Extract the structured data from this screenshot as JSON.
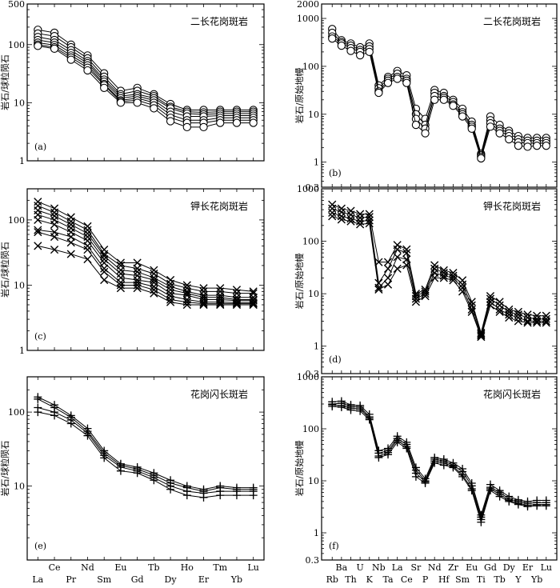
{
  "chart_data": [
    {
      "id": "a",
      "type": "line",
      "panel_label": "(a)",
      "title": "二长花岗斑岩",
      "ylabel": "岩石/球粒陨石",
      "yscale": "log",
      "ylim": [
        1,
        500
      ],
      "yticks": [
        1,
        10,
        100,
        500
      ],
      "ytick_labels": [
        "1",
        "10",
        "100",
        "500"
      ],
      "categories": [
        "La",
        "Ce",
        "Pr",
        "Nd",
        "Sm",
        "Eu",
        "Gd",
        "Tb",
        "Dy",
        "Ho",
        "Er",
        "Tm",
        "Yb",
        "Lu"
      ],
      "marker": "circle",
      "series": [
        {
          "values": [
            180,
            160,
            100,
            65,
            32,
            16,
            18,
            14,
            9.5,
            7.5,
            7.5,
            7.5,
            7.5,
            7.5
          ]
        },
        {
          "values": [
            155,
            140,
            90,
            58,
            28,
            14,
            16,
            13,
            8.5,
            7,
            6.8,
            7,
            7,
            7
          ]
        },
        {
          "values": [
            135,
            120,
            80,
            52,
            25,
            13,
            14,
            12,
            8,
            6.5,
            6.3,
            6.5,
            6.5,
            6.5
          ]
        },
        {
          "values": [
            120,
            108,
            72,
            48,
            23,
            12,
            13,
            11,
            7,
            5.8,
            5.8,
            6,
            6,
            6
          ]
        },
        {
          "values": [
            108,
            98,
            65,
            44,
            21,
            11,
            12,
            10,
            6.2,
            5,
            5,
            5.5,
            5.5,
            5.5
          ]
        },
        {
          "values": [
            100,
            90,
            60,
            40,
            20,
            10.5,
            11,
            9,
            5.5,
            4.5,
            4.5,
            5,
            5,
            5
          ]
        },
        {
          "values": [
            95,
            85,
            55,
            36,
            18,
            10,
            10,
            8,
            4.8,
            3.8,
            3.8,
            4.5,
            4.5,
            4.5
          ]
        }
      ]
    },
    {
      "id": "b",
      "type": "line",
      "panel_label": "(b)",
      "title": "二长花岗斑岩",
      "ylabel": "岩石/原始地幔",
      "yscale": "log",
      "ylim": [
        0.3,
        2000
      ],
      "yticks": [
        0.3,
        1,
        10,
        100,
        1000,
        2000
      ],
      "ytick_labels": [
        "0.3",
        "1",
        "10",
        "100",
        "1000",
        "2000"
      ],
      "categories": [
        "Rb",
        "Ba",
        "Th",
        "U",
        "K",
        "Nb",
        "Ta",
        "La",
        "Ce",
        "Sr",
        "P",
        "Nd",
        "Hf",
        "Zr",
        "Sm",
        "Eu",
        "Ti",
        "Gd",
        "Tb",
        "Dy",
        "Y",
        "Er",
        "Yb",
        "Lu"
      ],
      "marker": "circle",
      "series": [
        {
          "values": [
            600,
            350,
            300,
            250,
            300,
            40,
            60,
            80,
            65,
            13,
            8,
            32,
            28,
            20,
            13,
            7,
            1.5,
            9,
            6,
            4.5,
            3.5,
            3.2,
            3.2,
            3.2
          ]
        },
        {
          "values": [
            500,
            320,
            270,
            220,
            260,
            35,
            55,
            70,
            55,
            10,
            6,
            28,
            24,
            18,
            11,
            6,
            1.4,
            7.5,
            5,
            4,
            3,
            2.8,
            2.8,
            2.8
          ]
        },
        {
          "values": [
            420,
            300,
            240,
            200,
            230,
            30,
            50,
            60,
            50,
            8,
            5,
            24,
            22,
            16,
            10,
            5.5,
            1.3,
            6.5,
            4.5,
            3.5,
            2.6,
            2.5,
            2.5,
            2.5
          ]
        },
        {
          "values": [
            380,
            270,
            210,
            170,
            200,
            28,
            45,
            55,
            45,
            6,
            4,
            20,
            20,
            15,
            9,
            5,
            1.2,
            5.5,
            4,
            3,
            2.2,
            2.1,
            2.2,
            2.2
          ]
        }
      ]
    },
    {
      "id": "c",
      "type": "line",
      "panel_label": "(c)",
      "title": "钾长花岗斑岩",
      "ylabel": "岩石/球粒陨石",
      "yscale": "log",
      "ylim": [
        1,
        300
      ],
      "yticks": [
        1,
        10,
        100
      ],
      "ytick_labels": [
        "1",
        "10",
        "100"
      ],
      "categories": [
        "La",
        "Ce",
        "Pr",
        "Nd",
        "Sm",
        "Eu",
        "Gd",
        "Tb",
        "Dy",
        "Ho",
        "Er",
        "Tm",
        "Yb",
        "Lu"
      ],
      "marker": "x",
      "series": [
        {
          "values": [
            190,
            150,
            110,
            80,
            35,
            22,
            22,
            17,
            12,
            10,
            9,
            9,
            8.5,
            8
          ]
        },
        {
          "values": [
            165,
            130,
            95,
            70,
            30,
            20,
            18,
            15,
            10.5,
            9,
            8,
            8,
            7.5,
            7.5
          ]
        },
        {
          "values": [
            140,
            115,
            85,
            62,
            28,
            17,
            16,
            13,
            9.5,
            8,
            7,
            7,
            6.5,
            6.5
          ]
        },
        {
          "values": [
            120,
            100,
            75,
            55,
            25,
            15,
            14,
            12,
            8.5,
            7.5,
            6.5,
            6.5,
            6,
            6
          ]
        },
        {
          "values": [
            100,
            85,
            65,
            48,
            22,
            13,
            12,
            11,
            7.5,
            7,
            6,
            6,
            5.8,
            5.8
          ]
        },
        {
          "values": [
            70,
            65,
            55,
            40,
            18,
            11,
            11,
            9.5,
            6.8,
            6,
            5.5,
            5.5,
            5.4,
            5.4
          ]
        },
        {
          "values": [
            65,
            55,
            45,
            35,
            16,
            10,
            10,
            8.5,
            6,
            5.5,
            5.2,
            5.2,
            5.2,
            5.2
          ]
        },
        {
          "values": [
            40,
            35,
            30,
            25,
            12,
            9,
            9,
            7.5,
            5.5,
            5,
            5,
            5,
            5,
            5
          ]
        }
      ]
    },
    {
      "id": "d",
      "type": "line",
      "panel_label": "(d)",
      "title": "钾长花岗斑岩",
      "ylabel": "岩石/原始地幔",
      "yscale": "log",
      "ylim": [
        0.3,
        1000
      ],
      "yticks": [
        0.3,
        1,
        10,
        100,
        1000
      ],
      "ytick_labels": [
        "0.3",
        "1",
        "10",
        "100",
        "1000"
      ],
      "categories": [
        "Rb",
        "Ba",
        "Th",
        "U",
        "K",
        "Nb",
        "Ta",
        "La",
        "Ce",
        "Sr",
        "P",
        "Nd",
        "Hf",
        "Zr",
        "Sm",
        "Eu",
        "Ti",
        "Gd",
        "Tb",
        "Dy",
        "Y",
        "Er",
        "Yb",
        "Lu"
      ],
      "marker": "x",
      "series": [
        {
          "values": [
            500,
            420,
            380,
            330,
            330,
            40,
            40,
            85,
            70,
            10,
            12,
            35,
            28,
            25,
            18,
            7,
            1.8,
            9,
            7,
            5,
            4.5,
            4,
            3.8,
            3.8
          ]
        },
        {
          "values": [
            420,
            360,
            320,
            280,
            290,
            16,
            30,
            70,
            60,
            9,
            11,
            30,
            25,
            22,
            15,
            6,
            1.7,
            8,
            6,
            4.5,
            4,
            3.5,
            3.3,
            3.3
          ]
        },
        {
          "values": [
            350,
            300,
            270,
            240,
            250,
            13,
            20,
            50,
            45,
            8,
            10,
            25,
            22,
            20,
            13,
            5,
            1.6,
            7,
            5,
            4,
            3.5,
            3,
            3,
            3
          ]
        },
        {
          "values": [
            300,
            260,
            240,
            210,
            220,
            12,
            15,
            30,
            35,
            7,
            9,
            20,
            20,
            18,
            11,
            4.5,
            1.5,
            6,
            4.5,
            3.5,
            3,
            2.8,
            2.8,
            2.8
          ]
        }
      ]
    },
    {
      "id": "e",
      "type": "line",
      "panel_label": "(e)",
      "title": "花岗闪长斑岩",
      "ylabel": "岩石/球粒陨石",
      "yscale": "log",
      "ylim": [
        1,
        300
      ],
      "yticks": [
        10,
        100
      ],
      "ytick_labels": [
        "10",
        "100"
      ],
      "categories": [
        "La",
        "Ce",
        "Pr",
        "Nd",
        "Sm",
        "Eu",
        "Gd",
        "Tb",
        "Dy",
        "Ho",
        "Er",
        "Tm",
        "Yb",
        "Lu"
      ],
      "marker": "plus",
      "series": [
        {
          "values": [
            160,
            125,
            90,
            60,
            30,
            20,
            18,
            15,
            12,
            10,
            9,
            10,
            9.5,
            9.5
          ]
        },
        {
          "values": [
            150,
            115,
            85,
            55,
            28,
            19,
            17,
            14,
            11,
            9.5,
            8.5,
            9.5,
            9,
            9
          ]
        },
        {
          "values": [
            115,
            100,
            78,
            52,
            26,
            18,
            16,
            13,
            10,
            8.5,
            8,
            8.5,
            8.5,
            8.5
          ]
        },
        {
          "values": [
            100,
            90,
            70,
            48,
            24,
            16,
            15,
            12,
            9,
            7.5,
            7,
            7.5,
            7.5,
            7.5
          ]
        }
      ]
    },
    {
      "id": "f",
      "type": "line",
      "panel_label": "(f)",
      "title": "花岗闪长斑岩",
      "ylabel": "岩石/原始地幔",
      "yscale": "log",
      "ylim": [
        0.3,
        1000
      ],
      "yticks": [
        0.3,
        1,
        10,
        100,
        1000
      ],
      "ytick_labels": [
        "0.3",
        "1",
        "10",
        "100",
        "1000"
      ],
      "categories": [
        "Rb",
        "Ba",
        "Th",
        "U",
        "K",
        "Nb",
        "Ta",
        "La",
        "Ce",
        "Sr",
        "P",
        "Nd",
        "Hf",
        "Zr",
        "Sm",
        "Eu",
        "Ti",
        "Gd",
        "Tb",
        "Dy",
        "Y",
        "Er",
        "Yb",
        "Lu"
      ],
      "marker": "plus",
      "series": [
        {
          "values": [
            330,
            340,
            290,
            280,
            190,
            38,
            42,
            72,
            55,
            18,
            11,
            28,
            26,
            22,
            17,
            9,
            2.2,
            8.5,
            6.5,
            5,
            4.3,
            4,
            4.2,
            4.2
          ]
        },
        {
          "values": [
            300,
            310,
            270,
            260,
            170,
            34,
            38,
            65,
            50,
            16,
            10,
            26,
            24,
            20,
            15,
            8,
            2,
            7.5,
            6,
            4.5,
            4,
            3.7,
            3.8,
            3.8
          ]
        },
        {
          "values": [
            290,
            280,
            250,
            240,
            160,
            30,
            35,
            60,
            45,
            14,
            9.5,
            24,
            22,
            19,
            13,
            7,
            1.8,
            7,
            5.5,
            4.2,
            3.7,
            3.4,
            3.5,
            3.5
          ]
        },
        {
          "values": [
            270,
            260,
            230,
            220,
            150,
            28,
            32,
            55,
            42,
            12,
            9,
            22,
            20,
            18,
            12,
            6.5,
            1.6,
            6.5,
            5,
            4,
            3.5,
            3.2,
            3.3,
            3.3
          ]
        }
      ]
    }
  ]
}
